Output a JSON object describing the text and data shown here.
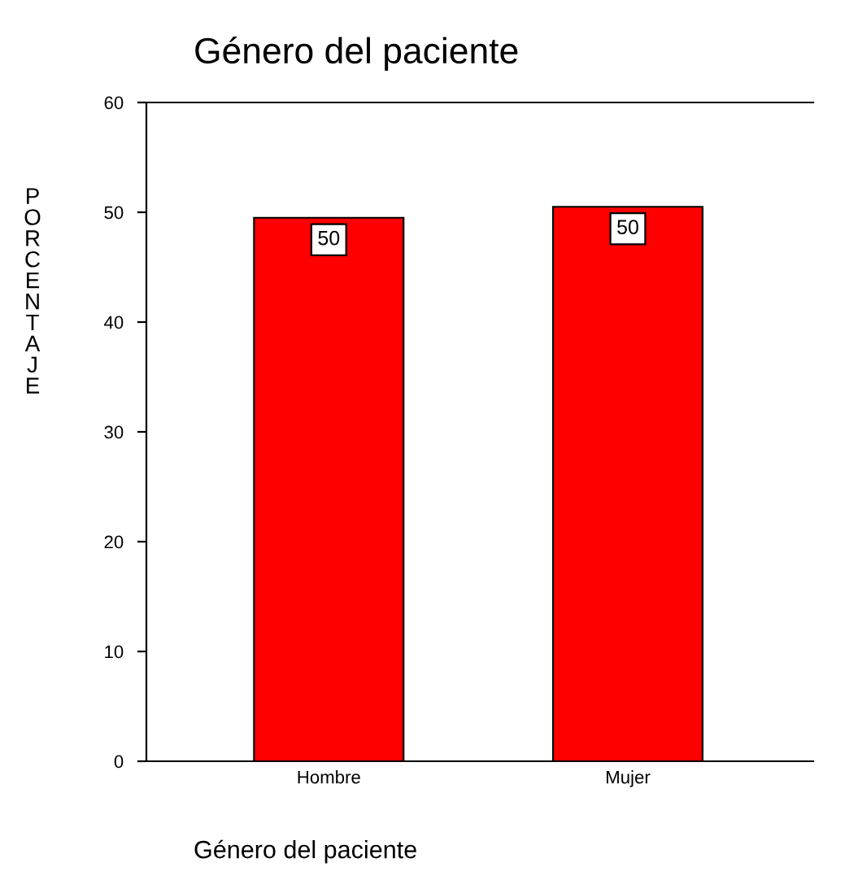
{
  "chart_data": {
    "type": "bar",
    "title": "Género del paciente",
    "xlabel": "Género del paciente",
    "ylabel": "PORCENTAJE",
    "categories": [
      "Hombre",
      "Mujer"
    ],
    "values": [
      49.5,
      50.5
    ],
    "value_labels": [
      "50",
      "50"
    ],
    "color": "#ff0000",
    "ylim": [
      0,
      60
    ],
    "yticks": [
      0,
      10,
      20,
      30,
      40,
      50,
      60
    ],
    "grid": false,
    "legend": false
  }
}
